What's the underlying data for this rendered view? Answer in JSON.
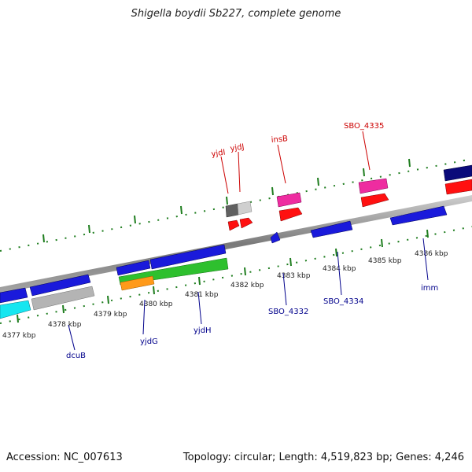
{
  "title": "Shigella boydii Sb227, complete genome",
  "footer": {
    "accession": "Accession: NC_007613",
    "topology": "Topology: circular; Length: 4,519,823 bp; Genes: 4,246"
  },
  "colors": {
    "forward_label": "#cc0000",
    "reverse_label": "#00008b",
    "tick_green": "#1e7d1e",
    "backbone": "#8a8a8a"
  },
  "kbp_labels": [
    "4377 kbp",
    "4378 kbp",
    "4379 kbp",
    "4380 kbp",
    "4381 kbp",
    "4382 kbp",
    "4383 kbp",
    "4384 kbp",
    "4385 kbp",
    "4386 kbp"
  ],
  "gene_labels": {
    "forward": [
      "yjdI",
      "yjdJ",
      "insB",
      "SBO_4335"
    ],
    "reverse": [
      "dcuB",
      "yjdG",
      "yjdH",
      "SBO_4332",
      "SBO_4334",
      "imm"
    ]
  }
}
